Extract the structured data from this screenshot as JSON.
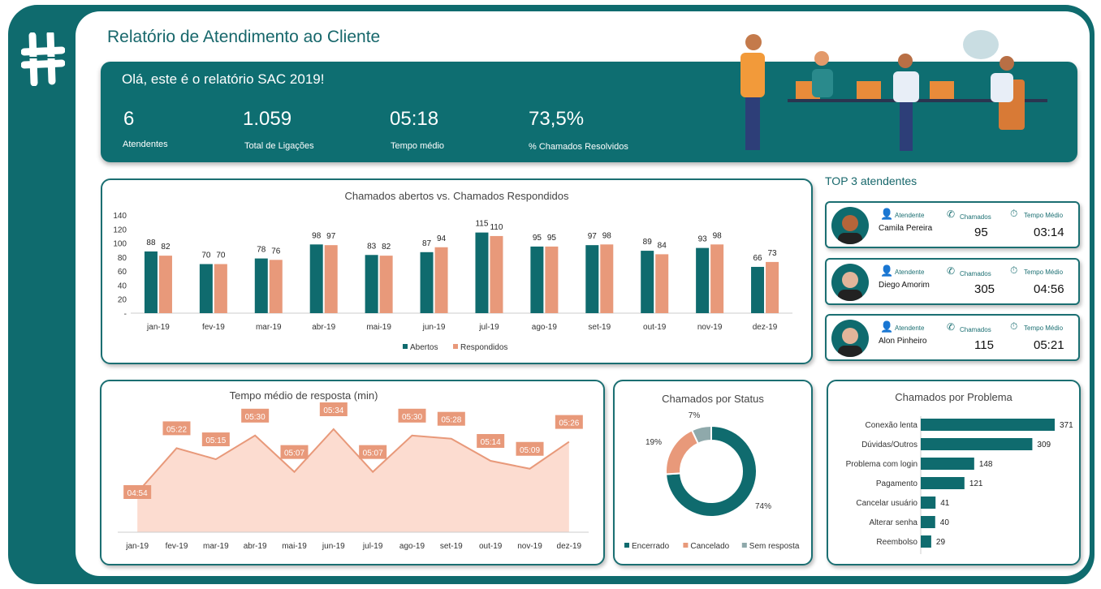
{
  "header": {
    "title": "Relatório de Atendimento ao Cliente",
    "greeting": "Olá, este é o relatório SAC 2019!"
  },
  "kpis": [
    {
      "value": "6",
      "label": "Atendentes"
    },
    {
      "value": "1.059",
      "label": "Total de Ligações"
    },
    {
      "value": "05:18",
      "label": "Tempo médio"
    },
    {
      "value": "73,5%",
      "label": "% Chamados Resolvidos"
    }
  ],
  "colors": {
    "teal": "#0f6b6e",
    "salmon": "#e8997a",
    "gray": "#8fa9ab",
    "area": "#fcdcd0"
  },
  "top3": {
    "title": "TOP 3 atendentes",
    "col_attendant": "Atendente",
    "col_calls": "Chamados",
    "col_time": "Tempo  Médio",
    "items": [
      {
        "name": "Camila Pereira",
        "calls": "95",
        "time": "03:14"
      },
      {
        "name": "Diego Amorim",
        "calls": "305",
        "time": "04:56"
      },
      {
        "name": "Alon Pinheiro",
        "calls": "115",
        "time": "05:21"
      }
    ]
  },
  "chart_data": [
    {
      "type": "bar",
      "title": "Chamados abertos vs. Chamados Respondidos",
      "categories": [
        "jan-19",
        "fev-19",
        "mar-19",
        "abr-19",
        "mai-19",
        "jun-19",
        "jul-19",
        "ago-19",
        "set-19",
        "out-19",
        "nov-19",
        "dez-19"
      ],
      "ylim": [
        0,
        140
      ],
      "yticks": [
        "-",
        "20",
        "40",
        "60",
        "80",
        "100",
        "120",
        "140"
      ],
      "legend": "bottom",
      "series": [
        {
          "name": "Abertos",
          "values": [
            88,
            70,
            78,
            98,
            83,
            87,
            115,
            95,
            97,
            89,
            93,
            66
          ]
        },
        {
          "name": "Respondidos",
          "values": [
            82,
            70,
            76,
            97,
            82,
            94,
            110,
            95,
            98,
            84,
            98,
            73
          ]
        }
      ]
    },
    {
      "type": "area",
      "title": "Tempo médio de resposta (min)",
      "categories": [
        "jan-19",
        "fev-19",
        "mar-19",
        "abr-19",
        "mai-19",
        "jun-19",
        "jul-19",
        "ago-19",
        "set-19",
        "out-19",
        "nov-19",
        "dez-19"
      ],
      "values": [
        "04:54",
        "05:22",
        "05:15",
        "05:30",
        "05:07",
        "05:34",
        "05:07",
        "05:30",
        "05:28",
        "05:14",
        "05:09",
        "05:26"
      ]
    },
    {
      "type": "pie",
      "title": "Chamados por Status",
      "categories": [
        "Encerrado",
        "Cancelado",
        "Sem resposta"
      ],
      "values": [
        74,
        19,
        7
      ],
      "labels": [
        "74%",
        "19%",
        "7%"
      ],
      "legend": "bottom"
    },
    {
      "type": "bar",
      "orientation": "horizontal",
      "title": "Chamados por Problema",
      "categories": [
        "Conexão lenta",
        "Dúvidas/Outros",
        "Problema com login",
        "Pagamento",
        "Cancelar usuário",
        "Alterar senha",
        "Reembolso"
      ],
      "values": [
        371,
        309,
        148,
        121,
        41,
        40,
        29
      ]
    }
  ]
}
